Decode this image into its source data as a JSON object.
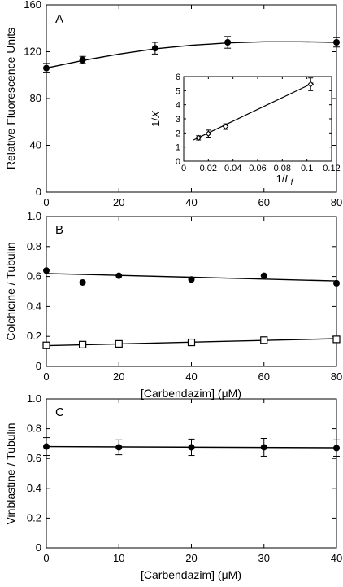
{
  "chart_data": [
    {
      "type": "scatter",
      "panel_label": "A",
      "xlabel": "",
      "ylabel": "Relative Fluorescence Units",
      "xlim": [
        0,
        80
      ],
      "ylim": [
        0,
        160
      ],
      "x_ticks": [
        0,
        20,
        40,
        60,
        80
      ],
      "y_ticks": [
        0,
        40,
        80,
        120,
        160
      ],
      "grid": false,
      "series": [
        {
          "marker": "filled-circle",
          "x": [
            0,
            10,
            30,
            50,
            80
          ],
          "y": [
            106,
            113,
            123,
            128,
            128
          ],
          "yerr": [
            4,
            3,
            5,
            5,
            4
          ],
          "fit": {
            "x": [
              0,
              10,
              20,
              30,
              40,
              50,
              60,
              70,
              80
            ],
            "y": [
              106,
              112.5,
              118,
              122.5,
              125.5,
              127.5,
              128.5,
              128.5,
              128
            ]
          }
        }
      ],
      "inset": {
        "type": "scatter",
        "xlabel_prefix": "1/",
        "xlabel_var": "L",
        "xlabel_sub": "f",
        "ylabel_prefix": "1/",
        "ylabel_var": "X",
        "xlim": [
          0,
          0.12
        ],
        "ylim": [
          0,
          6
        ],
        "x_ticks": [
          "0",
          "0.02",
          "0.04",
          "0.06",
          "0.08",
          "0.1",
          "0.12"
        ],
        "y_ticks": [
          "0",
          "1",
          "2",
          "3",
          "4",
          "5",
          "6"
        ],
        "series": [
          {
            "marker": "open-diamond",
            "x": [
              0.012,
              0.02,
              0.034,
              0.103
            ],
            "y": [
              1.65,
              1.95,
              2.45,
              5.45
            ],
            "yerr": [
              0.15,
              0.25,
              0.2,
              0.45
            ],
            "fit": {
              "x": [
                0.008,
                0.105
              ],
              "y": [
                1.5,
                5.55
              ]
            }
          }
        ]
      }
    },
    {
      "type": "scatter",
      "panel_label": "B",
      "xlabel": "[Carbendazim] (μM)",
      "ylabel": "Colchicine / Tubulin",
      "xlim": [
        0,
        80
      ],
      "ylim": [
        0,
        1.0
      ],
      "x_ticks": [
        0,
        20,
        40,
        60,
        80
      ],
      "y_ticks": [
        "0",
        "0.2",
        "0.4",
        "0.6",
        "0.8",
        "1.0"
      ],
      "grid": false,
      "series": [
        {
          "marker": "filled-circle",
          "x": [
            0,
            10,
            20,
            40,
            60,
            80
          ],
          "y": [
            0.64,
            0.56,
            0.605,
            0.58,
            0.605,
            0.555
          ],
          "fit": {
            "x": [
              0,
              80
            ],
            "y": [
              0.62,
              0.57
            ]
          }
        },
        {
          "marker": "open-square",
          "x": [
            0,
            10,
            20,
            40,
            60,
            80
          ],
          "y": [
            0.14,
            0.145,
            0.15,
            0.16,
            0.175,
            0.18
          ],
          "fit": {
            "x": [
              0,
              80
            ],
            "y": [
              0.138,
              0.185
            ]
          }
        }
      ]
    },
    {
      "type": "scatter",
      "panel_label": "C",
      "xlabel": "[Carbendazim] (μM)",
      "ylabel": "Vinblastine / Tubulin",
      "xlim": [
        0,
        40
      ],
      "ylim": [
        0,
        1.0
      ],
      "x_ticks": [
        0,
        10,
        20,
        30,
        40
      ],
      "y_ticks": [
        "0",
        "0.2",
        "0.4",
        "0.6",
        "0.8",
        "1.0"
      ],
      "grid": false,
      "series": [
        {
          "marker": "filled-circle",
          "x": [
            0,
            10,
            20,
            30,
            40
          ],
          "y": [
            0.68,
            0.675,
            0.675,
            0.675,
            0.67
          ],
          "yerr": [
            0.06,
            0.05,
            0.055,
            0.06,
            0.055
          ],
          "fit": {
            "x": [
              0,
              40
            ],
            "y": [
              0.68,
              0.672
            ]
          }
        }
      ]
    }
  ]
}
